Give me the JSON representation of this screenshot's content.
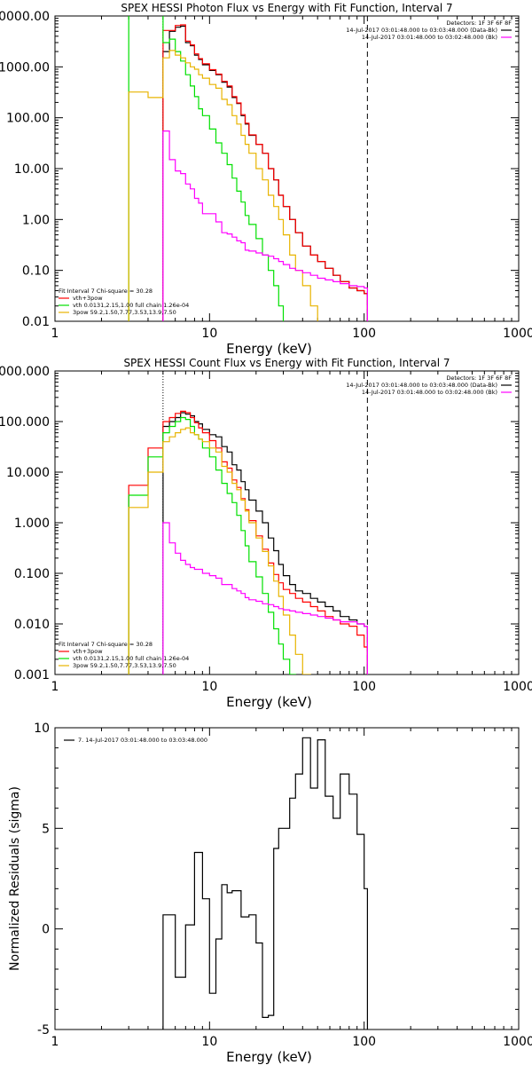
{
  "chart_data": [
    {
      "type": "line",
      "title": "SPEX HESSI Photon Flux vs Energy with Fit Function, Interval 7",
      "xlabel": "Energy (keV)",
      "ylabel": "",
      "xscale": "log",
      "yscale": "log",
      "xlim": [
        1,
        1000
      ],
      "ylim": [
        0.01,
        10000
      ],
      "xticks": [
        {
          "v": 1,
          "label": "1"
        },
        {
          "v": 10,
          "label": "10"
        },
        {
          "v": 100,
          "label": "100"
        },
        {
          "v": 1000,
          "label": "1000"
        }
      ],
      "yticks": [
        {
          "v": 10000,
          "label": "10000.00"
        },
        {
          "v": 1000,
          "label": "1000.00"
        },
        {
          "v": 100,
          "label": "100.00"
        },
        {
          "v": 10,
          "label": "10.00"
        },
        {
          "v": 1,
          "label": "1.00"
        },
        {
          "v": 0.1,
          "label": "0.10"
        },
        {
          "v": 0.01,
          "label": "0.01"
        }
      ],
      "vlines": [
        {
          "x": 5,
          "style": "dotted",
          "color": "#000000"
        },
        {
          "x": 105,
          "style": "dashed",
          "color": "#000000"
        }
      ],
      "info_lines": [
        "Detectors: 1F 3F 6F 8F",
        "14-Jul-2017 03:01:48.000 to 03:03:48.000 (Data-Bk)",
        "14-Jul-2017 03:01:48.000 to 03:02:48.000 (Bk)"
      ],
      "info_colors": [
        "",
        "#000000",
        "#ff00ff"
      ],
      "fit_lines": [
        "Fit Interval  7   Chi-square = 30.28",
        "vth+3pow",
        "vth 0.0131,2.15,1.00  full chain 1.26e-04",
        "3pow 59.2,1.50,7.77,3.53,13.9,7.50"
      ],
      "fit_colors": [
        "",
        "#ff0000",
        "#00e000",
        "#e8b400"
      ],
      "edges": [
        3.0,
        4.0,
        5.0,
        5.5,
        6.0,
        6.5,
        7.0,
        7.5,
        8.0,
        8.5,
        9.0,
        10.0,
        11.0,
        12.0,
        13.0,
        14.0,
        15.0,
        16.0,
        17.0,
        18.0,
        20.0,
        22.0,
        24.0,
        26.0,
        28.0,
        30.0,
        33.0,
        36.0,
        40.0,
        45.0,
        50.0,
        56.0,
        63.0,
        70.0,
        80.0,
        90.0,
        100.0,
        105.0
      ],
      "series": [
        {
          "name": "data-bk",
          "color": "#000000",
          "bin_start": 2,
          "values": [
            2000,
            5000,
            6000,
            6300,
            3000,
            2600,
            1700,
            1400,
            1100,
            850,
            700,
            500,
            400,
            250,
            190,
            110,
            75,
            45,
            30,
            20,
            10,
            6,
            3,
            1.8,
            1,
            0.55,
            0.3,
            0.2,
            0.15,
            0.11,
            0.08,
            0.06,
            0.045,
            0.04,
            0.035,
            0.02,
            0.012
          ]
        },
        {
          "name": "vth+3pow",
          "color": "#ff0000",
          "bin_start": 2,
          "values": [
            5200,
            5200,
            6500,
            6700,
            3200,
            2700,
            1800,
            1450,
            1150,
            880,
            720,
            520,
            420,
            260,
            195,
            115,
            78,
            46,
            30,
            20,
            10,
            6,
            3,
            1.8,
            1,
            0.55,
            0.3,
            0.2,
            0.15,
            0.11,
            0.08,
            0.06,
            0.045,
            0.04,
            0.035,
            0.02,
            0.012
          ]
        },
        {
          "name": "vth",
          "color": "#00e000",
          "bin_start": 0,
          "values": [
            30000,
            30000,
            3000,
            3500,
            2000,
            1300,
            700,
            420,
            260,
            150,
            110,
            60,
            32,
            20,
            12,
            6.5,
            3.6,
            2.2,
            1.2,
            0.8,
            0.42,
            0.2,
            0.1,
            0.05,
            0.02,
            0.005
          ]
        },
        {
          "name": "3pow",
          "color": "#e8b400",
          "bin_start": 0,
          "values": [
            320,
            250,
            1500,
            2100,
            1700,
            1500,
            1200,
            1000,
            900,
            700,
            600,
            450,
            380,
            230,
            180,
            110,
            75,
            45,
            30,
            20,
            10,
            6,
            3,
            1.8,
            1,
            0.5,
            0.2,
            0.1,
            0.05,
            0.02,
            0.005
          ]
        },
        {
          "name": "bk",
          "color": "#ff00ff",
          "bin_start": 2,
          "values": [
            55,
            15,
            9,
            8,
            5,
            4,
            2.6,
            2.1,
            1.3,
            1.3,
            0.9,
            0.55,
            0.52,
            0.45,
            0.38,
            0.35,
            0.25,
            0.24,
            0.22,
            0.2,
            0.19,
            0.17,
            0.15,
            0.13,
            0.11,
            0.1,
            0.09,
            0.08,
            0.07,
            0.065,
            0.06,
            0.055,
            0.05,
            0.048,
            0.045,
            0.04,
            0.035
          ]
        }
      ]
    },
    {
      "type": "line",
      "title": "SPEX HESSI Count Flux vs Energy with Fit Function, Interval 7",
      "xlabel": "Energy (keV)",
      "ylabel": "",
      "xscale": "log",
      "yscale": "log",
      "xlim": [
        1,
        1000
      ],
      "ylim": [
        0.001,
        1000
      ],
      "xticks": [
        {
          "v": 1,
          "label": "1"
        },
        {
          "v": 10,
          "label": "10"
        },
        {
          "v": 100,
          "label": "100"
        },
        {
          "v": 1000,
          "label": "1000"
        }
      ],
      "yticks": [
        {
          "v": 1000,
          "label": "1000.000"
        },
        {
          "v": 100,
          "label": "100.000"
        },
        {
          "v": 10,
          "label": "10.000"
        },
        {
          "v": 1,
          "label": "1.000"
        },
        {
          "v": 0.1,
          "label": "0.100"
        },
        {
          "v": 0.01,
          "label": "0.010"
        },
        {
          "v": 0.001,
          "label": "0.001"
        }
      ],
      "vlines": [
        {
          "x": 5,
          "style": "dotted",
          "color": "#000000"
        },
        {
          "x": 105,
          "style": "dashed",
          "color": "#000000"
        }
      ],
      "info_lines": [
        "Detectors: 1F 3F 6F 8F",
        "14-Jul-2017 03:01:48.000 to 03:03:48.000 (Data-Bk)",
        "14-Jul-2017 03:01:48.000 to 03:02:48.000 (Bk)"
      ],
      "info_colors": [
        "",
        "#000000",
        "#ff00ff"
      ],
      "fit_lines": [
        "Fit Interval  7   Chi-square = 30.28",
        "vth+3pow",
        "vth 0.0131,2.15,1.00  full chain 1.26e-04",
        "3pow 59.2,1.50,7.77,3.53,13.9,7.50"
      ],
      "fit_colors": [
        "",
        "#ff0000",
        "#00e000",
        "#e8b400"
      ],
      "edges": [
        3.0,
        4.0,
        5.0,
        5.5,
        6.0,
        6.5,
        7.0,
        7.5,
        8.0,
        8.5,
        9.0,
        10.0,
        11.0,
        12.0,
        13.0,
        14.0,
        15.0,
        16.0,
        17.0,
        18.0,
        20.0,
        22.0,
        24.0,
        26.0,
        28.0,
        30.0,
        33.0,
        36.0,
        40.0,
        45.0,
        50.0,
        56.0,
        63.0,
        70.0,
        80.0,
        90.0,
        100.0,
        105.0
      ],
      "series": [
        {
          "name": "data-bk",
          "color": "#000000",
          "bin_start": 2,
          "values": [
            80,
            100,
            120,
            150,
            140,
            130,
            100,
            90,
            70,
            55,
            50,
            32,
            25,
            14,
            11,
            6.5,
            4.5,
            2.8,
            1.7,
            1.0,
            0.5,
            0.28,
            0.15,
            0.09,
            0.06,
            0.045,
            0.04,
            0.032,
            0.027,
            0.022,
            0.018,
            0.014,
            0.012,
            0.01,
            0.009,
            0.006,
            0.0035
          ]
        },
        {
          "name": "vth+3pow",
          "color": "#ff0000",
          "bin_start": 0,
          "values": [
            5.5,
            30,
            100,
            120,
            145,
            160,
            150,
            120,
            95,
            75,
            60,
            42,
            30,
            16,
            12,
            7,
            5,
            3,
            1.8,
            1.1,
            0.55,
            0.3,
            0.16,
            0.095,
            0.065,
            0.048,
            0.04,
            0.032,
            0.027,
            0.022,
            0.018,
            0.014,
            0.012,
            0.01,
            0.009,
            0.006,
            0.0035
          ]
        },
        {
          "name": "vth",
          "color": "#00e000",
          "bin_start": 0,
          "values": [
            3.5,
            20,
            60,
            80,
            100,
            120,
            110,
            80,
            55,
            45,
            30,
            20,
            11,
            6,
            3.8,
            2.5,
            1.4,
            0.7,
            0.35,
            0.17,
            0.085,
            0.04,
            0.017,
            0.008,
            0.004,
            0.002,
            0.001
          ]
        },
        {
          "name": "3pow",
          "color": "#e8b400",
          "bin_start": 0,
          "values": [
            2,
            10,
            40,
            50,
            60,
            70,
            75,
            60,
            55,
            45,
            40,
            30,
            25,
            13,
            10,
            6,
            4.5,
            2.8,
            1.7,
            1.0,
            0.5,
            0.27,
            0.14,
            0.07,
            0.035,
            0.015,
            0.006,
            0.0025,
            0.001
          ]
        },
        {
          "name": "bk",
          "color": "#ff00ff",
          "bin_start": 2,
          "values": [
            1.0,
            0.4,
            0.25,
            0.18,
            0.15,
            0.13,
            0.12,
            0.12,
            0.1,
            0.09,
            0.08,
            0.06,
            0.06,
            0.05,
            0.045,
            0.04,
            0.033,
            0.03,
            0.028,
            0.025,
            0.024,
            0.022,
            0.02,
            0.019,
            0.018,
            0.017,
            0.016,
            0.015,
            0.014,
            0.013,
            0.012,
            0.011,
            0.011,
            0.01,
            0.009,
            0.009,
            0.008
          ]
        }
      ]
    },
    {
      "type": "line",
      "title": "",
      "xlabel": "Energy (keV)",
      "ylabel": "Normalized Residuals (sigma)",
      "xscale": "log",
      "yscale": "linear",
      "xlim": [
        1,
        1000
      ],
      "ylim": [
        -5,
        10
      ],
      "xticks": [
        {
          "v": 1,
          "label": "1"
        },
        {
          "v": 10,
          "label": "10"
        },
        {
          "v": 100,
          "label": "100"
        },
        {
          "v": 1000,
          "label": "1000"
        }
      ],
      "yticks": [
        {
          "v": 10,
          "label": "10"
        },
        {
          "v": 5,
          "label": "5"
        },
        {
          "v": 0,
          "label": "0"
        },
        {
          "v": -5,
          "label": "-5"
        }
      ],
      "legend": [
        {
          "label": "7. 14-Jul-2017 03:01:48.000 to 03:03:48.000",
          "color": "#000000"
        }
      ],
      "edges": [
        5.0,
        5.5,
        6.0,
        6.5,
        7.0,
        7.5,
        8.0,
        8.5,
        9.0,
        10.0,
        11.0,
        12.0,
        13.0,
        14.0,
        15.0,
        16.0,
        17.0,
        18.0,
        20.0,
        22.0,
        24.0,
        26.0,
        28.0,
        30.0,
        33.0,
        36.0,
        40.0,
        45.0,
        50.0,
        56.0,
        63.0,
        70.0,
        80.0,
        90.0,
        100.0,
        105.0
      ],
      "series": [
        {
          "name": "residuals",
          "color": "#000000",
          "bin_start": 0,
          "values": [
            0.7,
            0.7,
            -2.4,
            -2.4,
            0.2,
            0.2,
            3.8,
            3.8,
            1.5,
            -3.2,
            -0.5,
            2.2,
            1.8,
            1.9,
            1.9,
            0.6,
            0.6,
            0.7,
            -0.7,
            -4.4,
            -4.3,
            4.0,
            5.0,
            5.0,
            6.5,
            7.7,
            9.5,
            7.0,
            9.4,
            6.6,
            5.5,
            7.7,
            6.7,
            4.7,
            2.0
          ]
        }
      ]
    }
  ]
}
